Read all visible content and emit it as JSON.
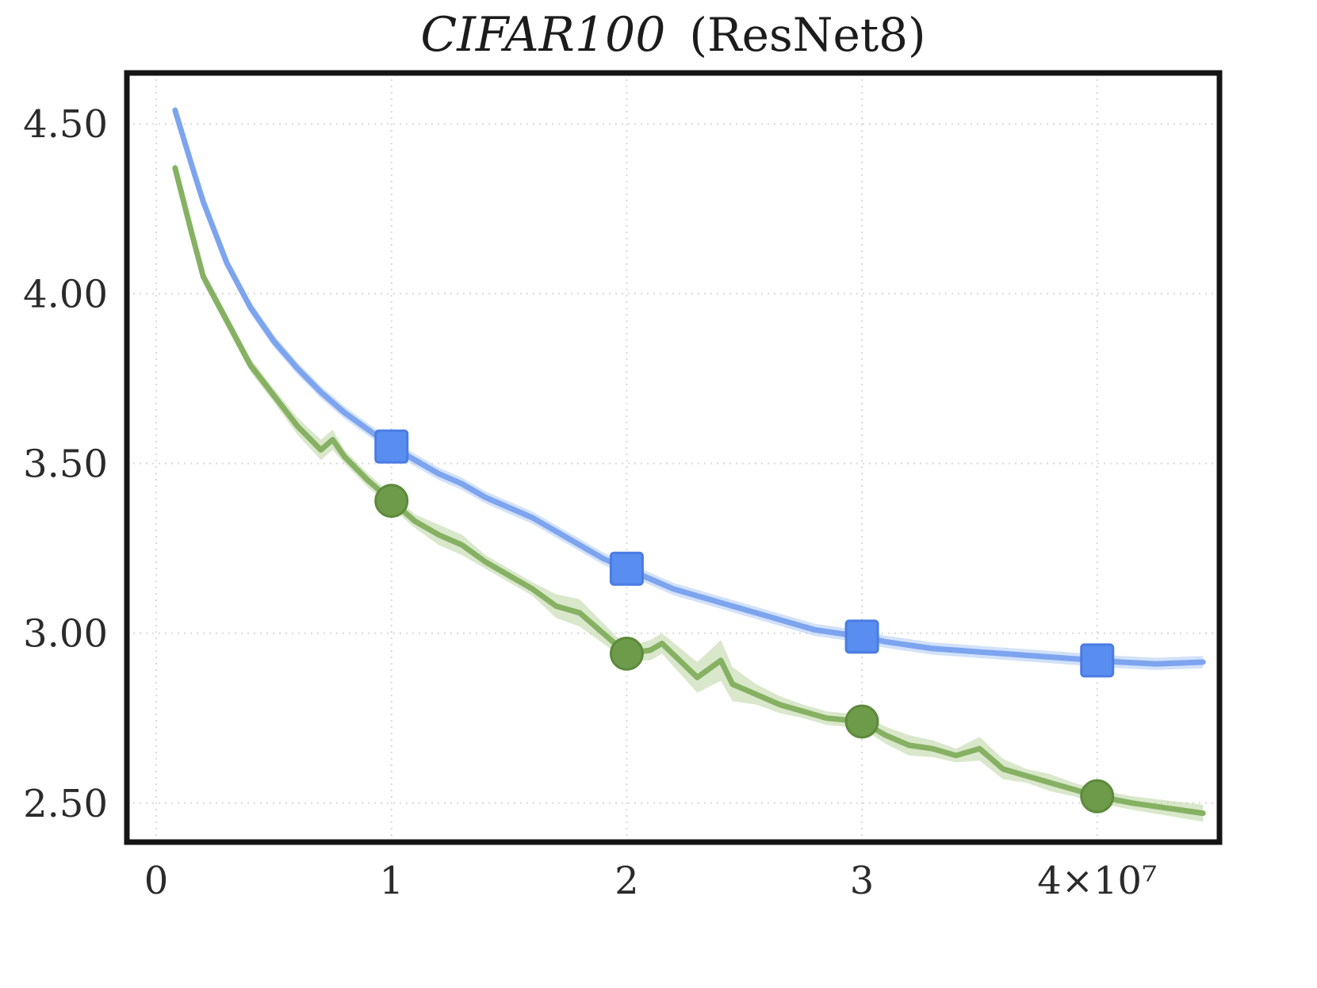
{
  "title": {
    "dataset": "CIFAR100",
    "model": "(ResNet8)"
  },
  "chart_data": {
    "type": "line",
    "title": "CIFAR100 (ResNet8)",
    "xlabel": "",
    "ylabel": "",
    "x_unit": "x values are in units of 10^7 (axis end label reads 4×10⁷)",
    "xlim": [
      -0.125,
      4.52
    ],
    "ylim": [
      2.385,
      4.65
    ],
    "grid": true,
    "legend": "none",
    "x_axis": {
      "tick_values": [
        0,
        1,
        2,
        3,
        4
      ],
      "tick_labels": [
        "0",
        "1",
        "2",
        "3",
        "4×10⁷"
      ]
    },
    "y_axis": {
      "tick_values": [
        2.5,
        3.0,
        3.5,
        4.0,
        4.5
      ],
      "tick_labels": [
        "2.50",
        "3.00",
        "3.50",
        "4.00",
        "4.50"
      ]
    },
    "style": {
      "grid_color": "#d9d9d9",
      "axes_color": "#151515",
      "background": "#ffffff",
      "text_color": "#2b2b2b"
    },
    "series": [
      {
        "name": "blue-squares",
        "marker": "square",
        "color": "#7da4ee",
        "band_color": "#adc9f5",
        "marker_color": "#5a8df0",
        "marker_edge": "#4a7ce4",
        "x": [
          0.08,
          0.15,
          0.2,
          0.3,
          0.4,
          0.5,
          0.6,
          0.7,
          0.8,
          0.9,
          1.0,
          1.1,
          1.2,
          1.3,
          1.4,
          1.5,
          1.6,
          1.7,
          1.8,
          1.9,
          2.0,
          2.1,
          2.2,
          2.3,
          2.4,
          2.5,
          2.6,
          2.7,
          2.8,
          2.9,
          3.0,
          3.1,
          3.2,
          3.3,
          3.4,
          3.5,
          3.6,
          3.7,
          3.8,
          3.9,
          4.0,
          4.1,
          4.25,
          4.45
        ],
        "y": [
          4.54,
          4.38,
          4.27,
          4.09,
          3.96,
          3.86,
          3.78,
          3.71,
          3.65,
          3.6,
          3.55,
          3.51,
          3.47,
          3.44,
          3.4,
          3.37,
          3.34,
          3.3,
          3.26,
          3.22,
          3.19,
          3.16,
          3.13,
          3.11,
          3.09,
          3.07,
          3.05,
          3.03,
          3.01,
          3.0,
          2.99,
          2.975,
          2.965,
          2.955,
          2.95,
          2.945,
          2.94,
          2.935,
          2.93,
          2.925,
          2.92,
          2.915,
          2.91,
          2.915
        ],
        "band": 0.018,
        "markers": [
          [
            1,
            3.55
          ],
          [
            2,
            3.19
          ],
          [
            3,
            2.99
          ],
          [
            4,
            2.92
          ]
        ]
      },
      {
        "name": "green-circles",
        "marker": "circle",
        "color": "#86b163",
        "band_color": "#b9d4a0",
        "marker_color": "#6d9b49",
        "marker_edge": "#5d8a3c",
        "x": [
          0.08,
          0.15,
          0.2,
          0.3,
          0.4,
          0.5,
          0.6,
          0.7,
          0.75,
          0.8,
          0.9,
          1.0,
          1.1,
          1.2,
          1.3,
          1.4,
          1.5,
          1.6,
          1.7,
          1.8,
          1.9,
          2.0,
          2.1,
          2.15,
          2.3,
          2.4,
          2.45,
          2.55,
          2.65,
          2.75,
          2.85,
          3.0,
          3.1,
          3.2,
          3.3,
          3.4,
          3.5,
          3.6,
          3.7,
          3.8,
          3.9,
          4.0,
          4.15,
          4.45
        ],
        "y": [
          4.37,
          4.18,
          4.05,
          3.92,
          3.79,
          3.7,
          3.61,
          3.54,
          3.57,
          3.52,
          3.45,
          3.39,
          3.33,
          3.29,
          3.26,
          3.21,
          3.17,
          3.13,
          3.08,
          3.06,
          3.0,
          2.94,
          2.95,
          2.97,
          2.87,
          2.92,
          2.85,
          2.82,
          2.79,
          2.77,
          2.75,
          2.74,
          2.7,
          2.67,
          2.66,
          2.64,
          2.66,
          2.6,
          2.58,
          2.56,
          2.54,
          2.52,
          2.5,
          2.47
        ],
        "band": [
          0.02,
          0.02,
          0.02,
          0.02,
          0.02,
          0.02,
          0.025,
          0.03,
          0.03,
          0.02,
          0.02,
          0.02,
          0.02,
          0.03,
          0.03,
          0.02,
          0.02,
          0.02,
          0.035,
          0.04,
          0.03,
          0.02,
          0.03,
          0.03,
          0.045,
          0.06,
          0.05,
          0.03,
          0.025,
          0.02,
          0.02,
          0.02,
          0.025,
          0.03,
          0.025,
          0.02,
          0.035,
          0.03,
          0.02,
          0.025,
          0.02,
          0.02,
          0.02,
          0.025
        ],
        "markers": [
          [
            1,
            3.39
          ],
          [
            2,
            2.94
          ],
          [
            3,
            2.74
          ],
          [
            4,
            2.52
          ]
        ]
      }
    ]
  }
}
